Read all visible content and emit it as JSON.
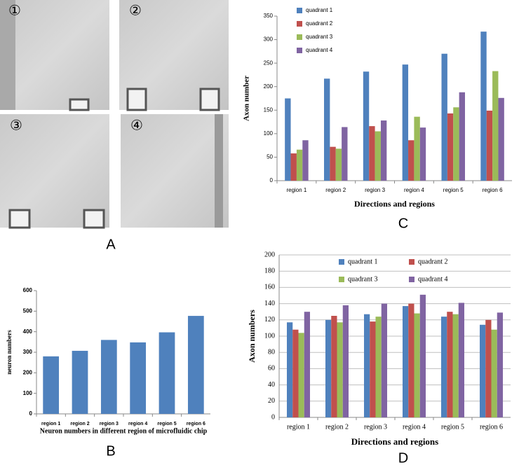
{
  "figure": {
    "panel_labels": [
      "A",
      "B",
      "C",
      "D"
    ],
    "image_labels": [
      "①",
      "②",
      "③",
      "④"
    ]
  },
  "chart_data": [
    {
      "type": "bar",
      "categories": [
        "region 1",
        "region 2",
        "region 3",
        "region 4",
        "region 5",
        "region 6"
      ],
      "series": [
        {
          "name": "quadrant 1",
          "color": "#4f81bd",
          "values": [
            175,
            217,
            232,
            247,
            270,
            317
          ]
        },
        {
          "name": "quadrant 2",
          "color": "#c0504d",
          "values": [
            58,
            72,
            116,
            86,
            143,
            149
          ]
        },
        {
          "name": "quadrant 3",
          "color": "#9bbb59",
          "values": [
            66,
            68,
            105,
            136,
            156,
            233
          ]
        },
        {
          "name": "quadrant 4",
          "color": "#8064a2",
          "values": [
            86,
            114,
            128,
            113,
            188,
            176
          ]
        }
      ],
      "ylim": [
        0,
        350
      ],
      "yticks": [
        0,
        50,
        100,
        150,
        200,
        250,
        300,
        350
      ],
      "xlabel": "Directions and regions",
      "ylabel": "Axon number",
      "grid": false,
      "legend": "upper left"
    },
    {
      "type": "bar",
      "categories": [
        "region 1",
        "region 2",
        "region 3",
        "region 4",
        "region 5",
        "region 6"
      ],
      "values": [
        280,
        307,
        360,
        348,
        397,
        477
      ],
      "color": "#4f81bd",
      "ylim": [
        0,
        600
      ],
      "yticks": [
        0,
        100,
        200,
        300,
        400,
        500,
        600
      ],
      "xlabel": "Neuron numbers in different region of microfluidic chip",
      "ylabel": "neuron numbers",
      "grid": false
    },
    {
      "type": "bar",
      "categories": [
        "region 1",
        "region 2",
        "region 3",
        "region 4",
        "region 5",
        "region 6"
      ],
      "series": [
        {
          "name": "quadrant 1",
          "color": "#4f81bd",
          "values": [
            117,
            120,
            127,
            137,
            124,
            114
          ]
        },
        {
          "name": "quadrant 2",
          "color": "#c0504d",
          "values": [
            108,
            125,
            118,
            140,
            130,
            120
          ]
        },
        {
          "name": "quadrant 3",
          "color": "#9bbb59",
          "values": [
            104,
            117,
            124,
            128,
            127,
            108
          ]
        },
        {
          "name": "quadrant 4",
          "color": "#8064a2",
          "values": [
            130,
            138,
            140,
            151,
            141,
            129
          ]
        }
      ],
      "ylim": [
        0,
        200
      ],
      "yticks": [
        0,
        20,
        40,
        60,
        80,
        100,
        120,
        140,
        160,
        180,
        200
      ],
      "xlabel": "Directions and regions",
      "ylabel": "Axon numbers",
      "grid": true,
      "legend": "upper center"
    }
  ]
}
